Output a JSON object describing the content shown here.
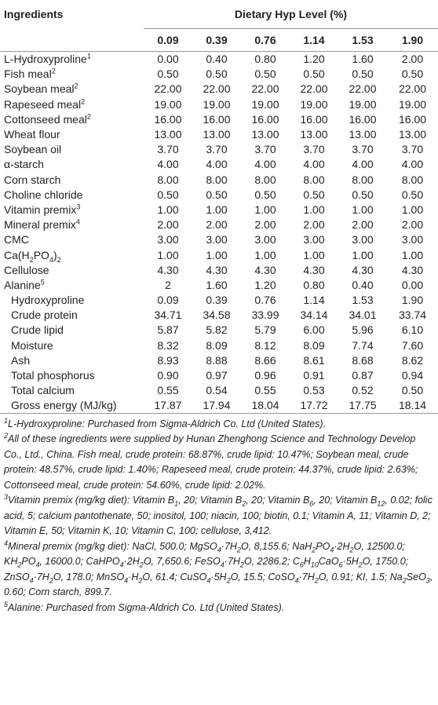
{
  "table": {
    "header": {
      "first": "Ingredients",
      "group": "Dietary Hyp Level (%)",
      "levels": [
        "0.09",
        "0.39",
        "0.76",
        "1.14",
        "1.53",
        "1.90"
      ]
    },
    "ingredients": [
      {
        "label": [
          "L-Hydroxyproline",
          {
            "sup": "1"
          }
        ],
        "values": [
          "0.00",
          "0.40",
          "0.80",
          "1.20",
          "1.60",
          "2.00"
        ]
      },
      {
        "label": [
          "Fish meal",
          {
            "sup": "2"
          }
        ],
        "values": [
          "0.50",
          "0.50",
          "0.50",
          "0.50",
          "0.50",
          "0.50"
        ]
      },
      {
        "label": [
          "Soybean meal",
          {
            "sup": "2"
          }
        ],
        "values": [
          "22.00",
          "22.00",
          "22.00",
          "22.00",
          "22.00",
          "22.00"
        ]
      },
      {
        "label": [
          "Rapeseed meal",
          {
            "sup": "2"
          }
        ],
        "values": [
          "19.00",
          "19.00",
          "19.00",
          "19.00",
          "19.00",
          "19.00"
        ]
      },
      {
        "label": [
          "Cottonseed meal",
          {
            "sup": "2"
          }
        ],
        "values": [
          "16.00",
          "16.00",
          "16.00",
          "16.00",
          "16.00",
          "16.00"
        ]
      },
      {
        "label": [
          "Wheat flour"
        ],
        "values": [
          "13.00",
          "13.00",
          "13.00",
          "13.00",
          "13.00",
          "13.00"
        ]
      },
      {
        "label": [
          "Soybean oil"
        ],
        "values": [
          "3.70",
          "3.70",
          "3.70",
          "3.70",
          "3.70",
          "3.70"
        ]
      },
      {
        "label": [
          "α-starch"
        ],
        "values": [
          "4.00",
          "4.00",
          "4.00",
          "4.00",
          "4.00",
          "4.00"
        ]
      },
      {
        "label": [
          "Corn starch"
        ],
        "values": [
          "8.00",
          "8.00",
          "8.00",
          "8.00",
          "8.00",
          "8.00"
        ]
      },
      {
        "label": [
          "Choline chloride"
        ],
        "values": [
          "0.50",
          "0.50",
          "0.50",
          "0.50",
          "0.50",
          "0.50"
        ]
      },
      {
        "label": [
          "Vitamin premix",
          {
            "sup": "3"
          }
        ],
        "values": [
          "1.00",
          "1.00",
          "1.00",
          "1.00",
          "1.00",
          "1.00"
        ]
      },
      {
        "label": [
          "Mineral premix",
          {
            "sup": "4"
          }
        ],
        "values": [
          "2.00",
          "2.00",
          "2.00",
          "2.00",
          "2.00",
          "2.00"
        ]
      },
      {
        "label": [
          "CMC"
        ],
        "values": [
          "3.00",
          "3.00",
          "3.00",
          "3.00",
          "3.00",
          "3.00"
        ]
      },
      {
        "label": [
          "Ca(H",
          {
            "sub": "2"
          },
          "PO",
          {
            "sub": "4"
          },
          ")",
          {
            "sub": "2"
          }
        ],
        "values": [
          "1.00",
          "1.00",
          "1.00",
          "1.00",
          "1.00",
          "1.00"
        ]
      },
      {
        "label": [
          "Cellulose"
        ],
        "values": [
          "4.30",
          "4.30",
          "4.30",
          "4.30",
          "4.30",
          "4.30"
        ]
      },
      {
        "label": [
          "Alanine",
          {
            "sup": "5"
          }
        ],
        "values": [
          "2",
          "1.60",
          "1.20",
          "0.80",
          "0.40",
          "0.00"
        ]
      }
    ],
    "composition": [
      {
        "label": [
          "Hydroxyproline"
        ],
        "values": [
          "0.09",
          "0.39",
          "0.76",
          "1.14",
          "1.53",
          "1.90"
        ]
      },
      {
        "label": [
          "Crude protein"
        ],
        "values": [
          "34.71",
          "34.58",
          "33.99",
          "34.14",
          "34.01",
          "33.74"
        ]
      },
      {
        "label": [
          "Crude lipid"
        ],
        "values": [
          "5.87",
          "5.82",
          "5.79",
          "6.00",
          "5.96",
          "6.10"
        ]
      },
      {
        "label": [
          "Moisture"
        ],
        "values": [
          "8.32",
          "8.09",
          "8.12",
          "8.09",
          "7.74",
          "7.60"
        ]
      },
      {
        "label": [
          "Ash"
        ],
        "values": [
          "8.93",
          "8.88",
          "8.66",
          "8.61",
          "8.68",
          "8.62"
        ]
      },
      {
        "label": [
          "Total phosphorus"
        ],
        "values": [
          "0.90",
          "0.97",
          "0.96",
          "0.91",
          "0.87",
          "0.94"
        ]
      },
      {
        "label": [
          "Total calcium"
        ],
        "values": [
          "0.55",
          "0.54",
          "0.55",
          "0.53",
          "0.52",
          "0.50"
        ]
      },
      {
        "label": [
          "Gross energy (MJ/kg)"
        ],
        "values": [
          "17.87",
          "17.94",
          "18.04",
          "17.72",
          "17.75",
          "18.14"
        ]
      }
    ],
    "footnotes": [
      [
        {
          "sup": "1"
        },
        "L-Hydroxyproline: Purchased from Sigma-Aldrich Co. Ltd (United States)."
      ],
      [
        {
          "sup": "2"
        },
        "All of these ingredients were supplied by Hunan Zhenghong Science and Technology Develop Co., Ltd., China. Fish meal, crude protein: 68.87%, crude lipid: 10.47%; Soybean meal, crude protein: 48.57%, crude lipid: 1.40%; Rapeseed meal, crude protein: 44.37%, crude lipid: 2.63%; Cottonseed meal, crude protein: 54.60%, crude lipid: 2.02%."
      ],
      [
        {
          "sup": "3"
        },
        "Vitamin premix (mg/kg diet): Vitamin B",
        {
          "sub": "1"
        },
        ", 20; Vitamin B",
        {
          "sub": "2"
        },
        ", 20; Vitamin B",
        {
          "sub": "6"
        },
        ", 20; Vitamin B",
        {
          "sub": "12"
        },
        ", 0.02; folic acid, 5; calcium pantothenate, 50; inositol, 100; niacin, 100; biotin, 0.1; Vitamin A, 11; Vitamin D, 2; Vitamin E, 50; Vitamin K, 10; Vitamin C, 100; cellulose, 3,412."
      ],
      [
        {
          "sup": "4"
        },
        "Mineral premix (mg/kg diet): NaCl, 500.0; MgSO",
        {
          "sub": "4"
        },
        "·7H",
        {
          "sub": "2"
        },
        "O, 8,155.6; NaH",
        {
          "sub": "2"
        },
        "PO",
        {
          "sub": "4"
        },
        "·2H",
        {
          "sub": "2"
        },
        "O, 12500.0; KH",
        {
          "sub": "2"
        },
        "PO",
        {
          "sub": "4"
        },
        ", 16000.0; CaHPO",
        {
          "sub": "4"
        },
        "·2H",
        {
          "sub": "2"
        },
        "O, 7,650.6; FeSO",
        {
          "sub": "4"
        },
        "·7H",
        {
          "sub": "2"
        },
        "O, 2286.2; C",
        {
          "sub": "6"
        },
        "H",
        {
          "sub": "10"
        },
        "CaO",
        {
          "sub": "6"
        },
        "·5H",
        {
          "sub": "2"
        },
        "O, 1750.0; ZnSO",
        {
          "sub": "4"
        },
        "·7H",
        {
          "sub": "2"
        },
        "O, 178.0; MnSO",
        {
          "sub": "4"
        },
        "·H",
        {
          "sub": "2"
        },
        "O, 61.4; CuSO",
        {
          "sub": "4"
        },
        "·5H",
        {
          "sub": "2"
        },
        "O, 15.5; CoSO",
        {
          "sub": "4"
        },
        "·7H",
        {
          "sub": "2"
        },
        "O, 0.91; KI, 1.5; Na",
        {
          "sub": "2"
        },
        "SeO",
        {
          "sub": "3"
        },
        ", 0.60; Corn starch, 899.7."
      ],
      [
        {
          "sup": "5"
        },
        "Alanine: Purchased from Sigma-Aldrich Co. Ltd (United States)."
      ]
    ]
  }
}
